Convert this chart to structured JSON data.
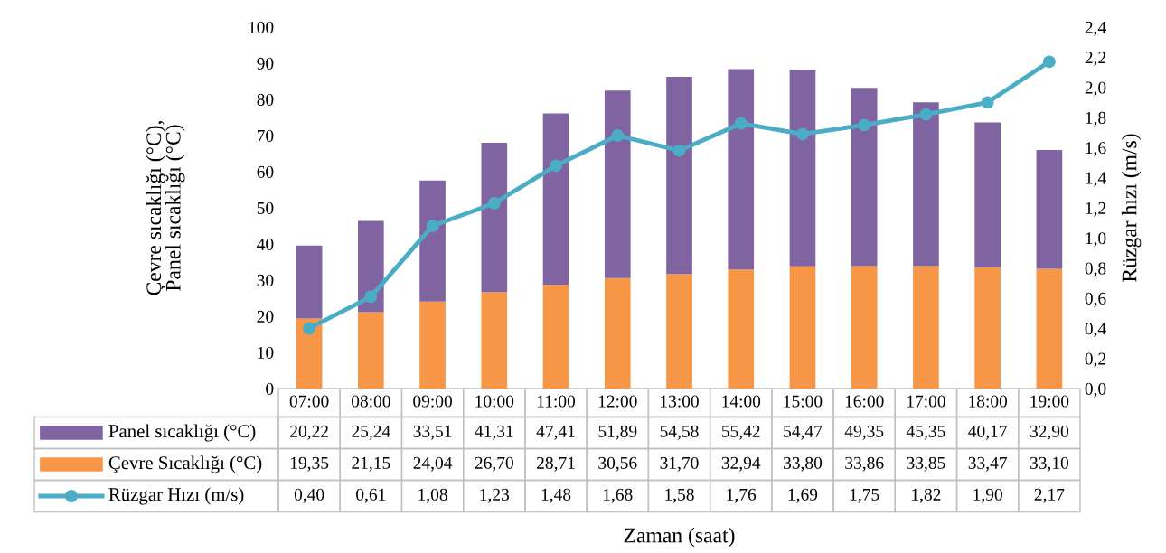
{
  "chart_data": {
    "type": "bar",
    "stacked": true,
    "annotations": [
      "Zaman (saat)"
    ],
    "ylabel": "Çevre sıcaklığı (°C),\nPanel sıcaklığı (°C)",
    "y2label": "Rüzgar hızı (m/s)",
    "categories": [
      "07:00",
      "08:00",
      "09:00",
      "10:00",
      "11:00",
      "12:00",
      "13:00",
      "14:00",
      "15:00",
      "16:00",
      "17:00",
      "18:00",
      "19:00"
    ],
    "series": [
      {
        "name": "Çevre Sıcaklığı (°C)",
        "color": "#f79646",
        "values": [
          19.35,
          21.15,
          24.04,
          26.7,
          28.71,
          30.56,
          31.7,
          32.94,
          33.8,
          33.86,
          33.85,
          33.47,
          33.1
        ],
        "value_labels": [
          "19,35",
          "21,15",
          "24,04",
          "26,70",
          "28,71",
          "30,56",
          "31,70",
          "32,94",
          "33,80",
          "33,86",
          "33,85",
          "33,47",
          "33,10"
        ]
      },
      {
        "name": "Panel sıcaklığı (°C)",
        "color": "#8064a2",
        "values": [
          20.22,
          25.24,
          33.51,
          41.31,
          47.41,
          51.89,
          54.58,
          55.42,
          54.47,
          49.35,
          45.35,
          40.17,
          32.9
        ],
        "value_labels": [
          "20,22",
          "25,24",
          "33,51",
          "41,31",
          "47,41",
          "51,89",
          "54,58",
          "55,42",
          "54,47",
          "49,35",
          "45,35",
          "40,17",
          "32,90"
        ]
      },
      {
        "name": "Rüzgar Hızı (m/s)",
        "type": "line",
        "axis": "y2",
        "color": "#4bacc6",
        "marker": "circle",
        "line_style": "solid",
        "values": [
          0.4,
          0.61,
          1.08,
          1.23,
          1.48,
          1.68,
          1.58,
          1.76,
          1.69,
          1.75,
          1.82,
          1.9,
          2.17
        ],
        "value_labels": [
          "0,40",
          "0,61",
          "1,08",
          "1,23",
          "1,48",
          "1,68",
          "1,58",
          "1,76",
          "1,69",
          "1,75",
          "1,82",
          "1,90",
          "2,17"
        ]
      }
    ],
    "ylim": [
      0,
      100
    ],
    "yticks": [
      0,
      10,
      20,
      30,
      40,
      50,
      60,
      70,
      80,
      90,
      100
    ],
    "y2lim": [
      0,
      2.4
    ],
    "y2ticks": [
      {
        "value": 0,
        "label": "0,0"
      },
      {
        "value": 0.2,
        "label": "0,2"
      },
      {
        "value": 0.4,
        "label": "0,4"
      },
      {
        "value": 0.6,
        "label": "0,6"
      },
      {
        "value": 0.8,
        "label": "0,8"
      },
      {
        "value": 1.0,
        "label": "1,0"
      },
      {
        "value": 1.2,
        "label": "1,2"
      },
      {
        "value": 1.4,
        "label": "1,4"
      },
      {
        "value": 1.6,
        "label": "1,6"
      },
      {
        "value": 1.8,
        "label": "1,8"
      },
      {
        "value": 2.0,
        "label": "2,0"
      },
      {
        "value": 2.2,
        "label": "2,2"
      },
      {
        "value": 2.4,
        "label": "2,4"
      }
    ],
    "grid": false,
    "legend": "bottom"
  }
}
